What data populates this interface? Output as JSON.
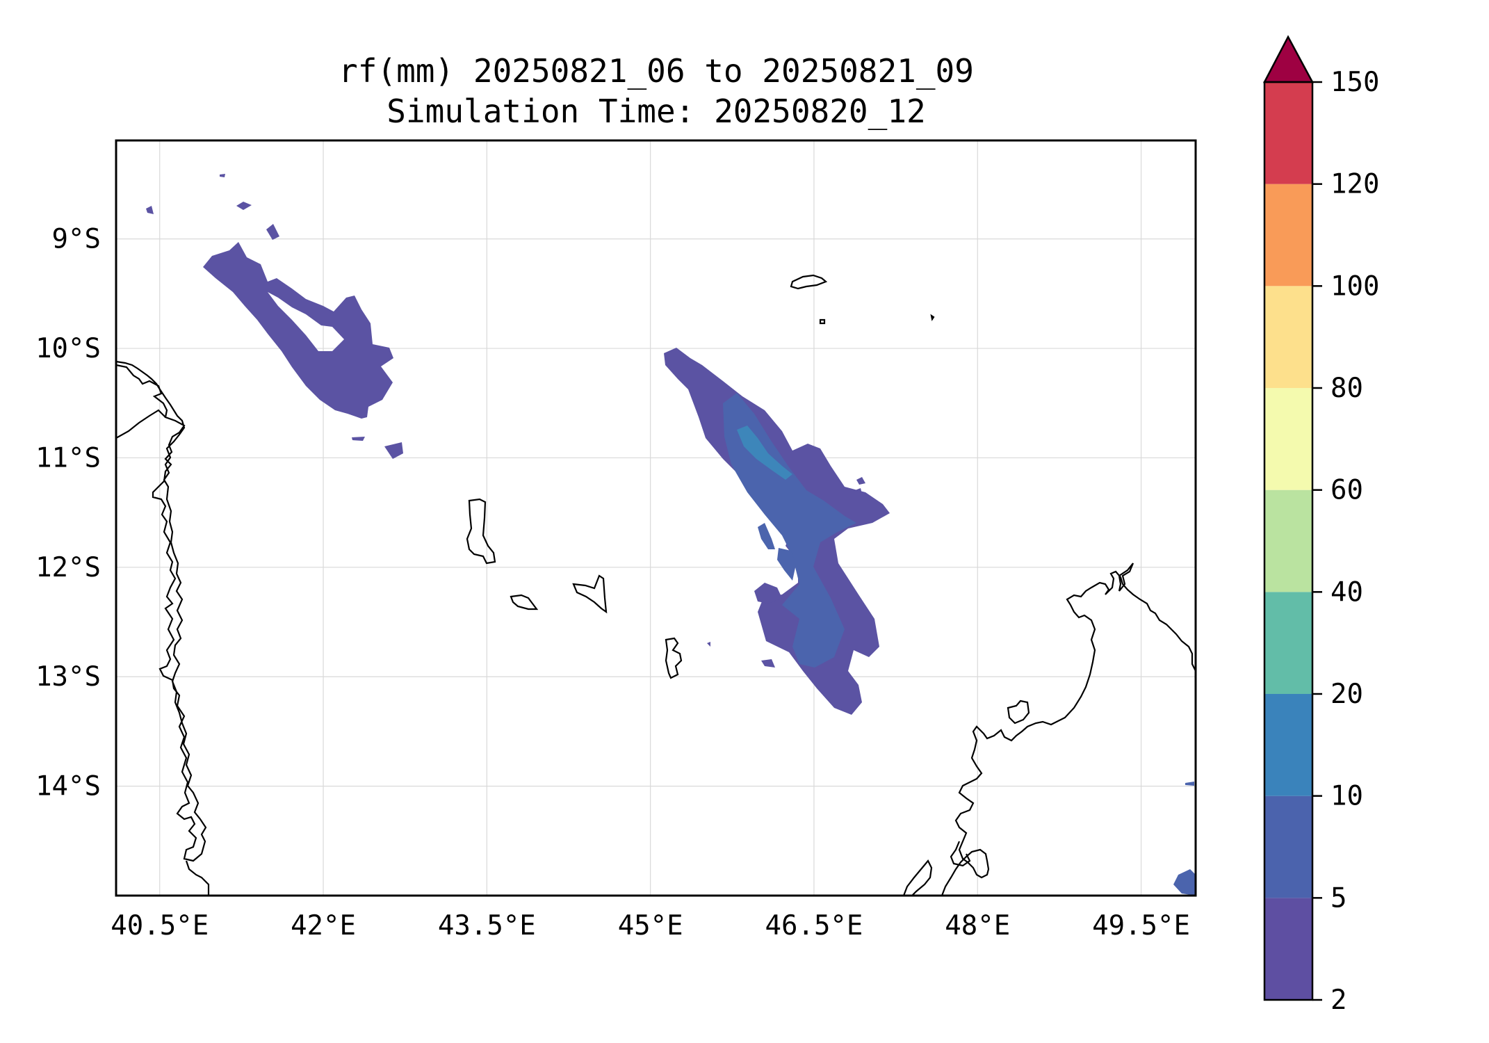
{
  "title_line1": "rf(mm) 20250821_06 to 20250821_09",
  "title_line2": "Simulation Time: 20250820_12",
  "map": {
    "lon_range": [
      40.1,
      50.0
    ],
    "lat_range": [
      -15.0,
      -8.1
    ],
    "gridlines": true,
    "x_ticks": [
      {
        "value": 40.5,
        "label": "40.5°E"
      },
      {
        "value": 42.0,
        "label": "42°E"
      },
      {
        "value": 43.5,
        "label": "43.5°E"
      },
      {
        "value": 45.0,
        "label": "45°E"
      },
      {
        "value": 46.5,
        "label": "46.5°E"
      },
      {
        "value": 48.0,
        "label": "48°E"
      },
      {
        "value": 49.5,
        "label": "49.5°E"
      }
    ],
    "y_ticks": [
      {
        "value": -9,
        "label": "9°S"
      },
      {
        "value": -10,
        "label": "10°S"
      },
      {
        "value": -11,
        "label": "11°S"
      },
      {
        "value": -12,
        "label": "12°S"
      },
      {
        "value": -13,
        "label": "13°S"
      },
      {
        "value": -14,
        "label": "14°S"
      }
    ]
  },
  "colorbar": {
    "levels": [
      {
        "value": 2,
        "label": "2"
      },
      {
        "value": 5,
        "label": "5"
      },
      {
        "value": 10,
        "label": "10"
      },
      {
        "value": 20,
        "label": "20"
      },
      {
        "value": 40,
        "label": "40"
      },
      {
        "value": 60,
        "label": "60"
      },
      {
        "value": 80,
        "label": "80"
      },
      {
        "value": 100,
        "label": "100"
      },
      {
        "value": 120,
        "label": "120"
      },
      {
        "value": 150,
        "label": "150"
      }
    ],
    "colors": [
      "#5e4fa2",
      "#4b63ad",
      "#3a83bb",
      "#62bda8",
      "#bae3a0",
      "#f4faae",
      "#fde08c",
      "#f99b58",
      "#d43d4f"
    ],
    "extend_color": "#9e0142"
  },
  "rain_fill_colors": {
    "light": "#5b53a3",
    "medium": "#4b64ad",
    "heavy": "#3d86ba"
  }
}
